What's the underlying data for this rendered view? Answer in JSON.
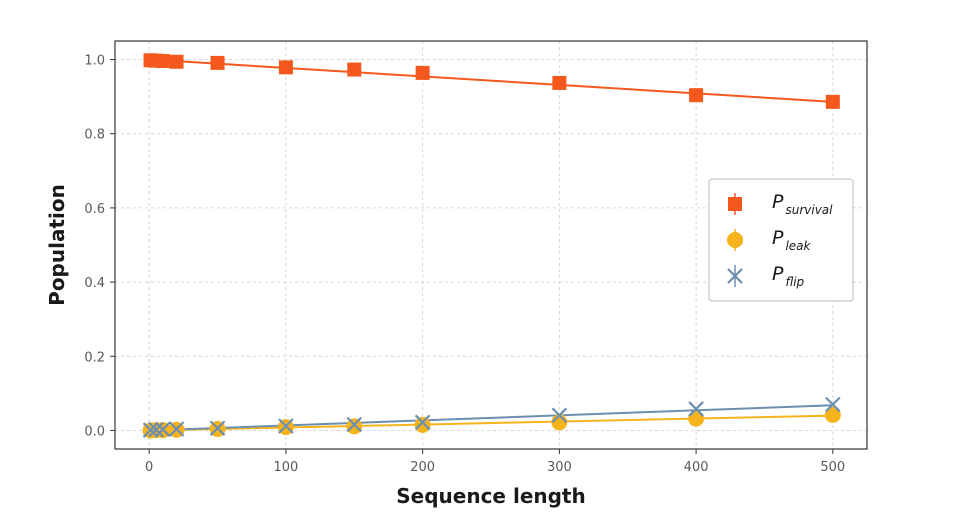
{
  "chart_data": {
    "type": "line",
    "title": "",
    "xlabel": "Sequence length",
    "ylabel": "Population",
    "xlim": [
      -25,
      525
    ],
    "ylim": [
      -0.05,
      1.05
    ],
    "xticks": [
      0,
      100,
      200,
      300,
      400,
      500
    ],
    "xtick_labels": [
      "0",
      "100",
      "200",
      "300",
      "400",
      "500"
    ],
    "yticks": [
      0.0,
      0.2,
      0.4,
      0.6,
      0.8,
      1.0
    ],
    "ytick_labels": [
      "0.0",
      "0.2",
      "0.4",
      "0.6",
      "0.8",
      "1.0"
    ],
    "grid": true,
    "legend_position": "center-right",
    "x": [
      1,
      5,
      10,
      20,
      50,
      100,
      150,
      200,
      300,
      400,
      500
    ],
    "series": [
      {
        "name": "P_survival",
        "label_main": "P",
        "label_sub": "survival",
        "marker": "square",
        "color": "#f4581c",
        "values": [
          0.998,
          0.997,
          0.996,
          0.994,
          0.991,
          0.979,
          0.973,
          0.964,
          0.937,
          0.904,
          0.886
        ],
        "fit": [
          1.0,
          0.886
        ]
      },
      {
        "name": "P_leak",
        "label_main": "P",
        "label_sub": "leak",
        "marker": "circle",
        "color": "#f7b31c",
        "values": [
          0.0,
          0.001,
          0.001,
          0.002,
          0.004,
          0.009,
          0.011,
          0.015,
          0.022,
          0.032,
          0.042
        ],
        "fit": [
          0.0,
          0.04
        ]
      },
      {
        "name": "P_flip",
        "label_main": "P",
        "label_sub": "flip",
        "marker": "x",
        "color": "#6c8fb0",
        "values": [
          0.001,
          0.002,
          0.003,
          0.004,
          0.006,
          0.012,
          0.016,
          0.022,
          0.041,
          0.058,
          0.07
        ],
        "fit": [
          0.0,
          0.068
        ]
      }
    ]
  }
}
